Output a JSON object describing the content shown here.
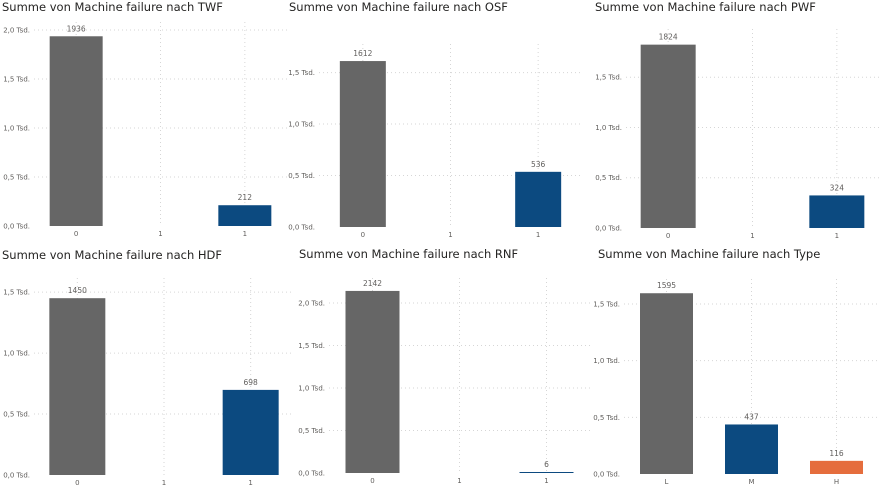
{
  "colors": {
    "grey": "#666666",
    "blue": "#0c4a80",
    "orange": "#e56d3d",
    "grid": "#d6d6d6"
  },
  "chart_data": [
    {
      "type": "bar",
      "title": "Summe von Machine failure nach TWF",
      "categories": [
        "0",
        "1",
        "1"
      ],
      "values": [
        1936,
        0,
        212
      ],
      "bar_colors": [
        "grey",
        "none",
        "blue"
      ],
      "data_labels": [
        "1936",
        "",
        "212"
      ],
      "ylim": [
        0,
        2000
      ],
      "yticks": [
        0,
        500,
        1000,
        1500,
        2000
      ],
      "ytick_labels": [
        "0,0 Tsd.",
        "0,5 Tsd.",
        "1,0 Tsd.",
        "1,5 Tsd.",
        "2,0 Tsd."
      ],
      "grid": true
    },
    {
      "type": "bar",
      "title": "Summe von Machine failure nach OSF",
      "categories": [
        "0",
        "1",
        "1"
      ],
      "values": [
        1612,
        0,
        536
      ],
      "bar_colors": [
        "grey",
        "none",
        "blue"
      ],
      "data_labels": [
        "1612",
        "",
        "536"
      ],
      "ylim": [
        0,
        1700
      ],
      "yticks": [
        0,
        500,
        1000,
        1500
      ],
      "ytick_labels": [
        "0,0 Tsd.",
        "0,5 Tsd.",
        "1,0 Tsd.",
        "1,5 Tsd."
      ],
      "grid": true
    },
    {
      "type": "bar",
      "title": "Summe von Machine failure nach PWF",
      "categories": [
        "0",
        "1",
        "1"
      ],
      "values": [
        1824,
        0,
        324
      ],
      "bar_colors": [
        "grey",
        "none",
        "blue"
      ],
      "data_labels": [
        "1824",
        "",
        "324"
      ],
      "ylim": [
        0,
        1900
      ],
      "yticks": [
        0,
        500,
        1000,
        1500
      ],
      "ytick_labels": [
        "0,0 Tsd.",
        "0,5 Tsd.",
        "1,0 Tsd.",
        "1,5 Tsd."
      ],
      "grid": true
    },
    {
      "type": "bar",
      "title": "Summe von Machine failure nach HDF",
      "categories": [
        "0",
        "1",
        "1"
      ],
      "values": [
        1450,
        0,
        698
      ],
      "bar_colors": [
        "grey",
        "none",
        "blue"
      ],
      "data_labels": [
        "1450",
        "",
        "698"
      ],
      "ylim": [
        0,
        1550
      ],
      "yticks": [
        0,
        500,
        1000,
        1500
      ],
      "ytick_labels": [
        "0,0 Tsd.",
        "0,5 Tsd.",
        "1,0 Tsd.",
        "1,5 Tsd."
      ],
      "grid": true
    },
    {
      "type": "bar",
      "title": "Summe von Machine failure nach RNF",
      "categories": [
        "0",
        "1",
        "1"
      ],
      "values": [
        2142,
        0,
        6
      ],
      "bar_colors": [
        "grey",
        "none",
        "blue"
      ],
      "data_labels": [
        "2142",
        "",
        "6"
      ],
      "ylim": [
        0,
        2200
      ],
      "yticks": [
        0,
        500,
        1000,
        1500,
        2000
      ],
      "ytick_labels": [
        "0,0 Tsd.",
        "0,5 Tsd.",
        "1,0 Tsd.",
        "1,5 Tsd.",
        "2,0 Tsd."
      ],
      "grid": true
    },
    {
      "type": "bar",
      "title": "Summe von Machine failure nach Type",
      "categories": [
        "L",
        "M",
        "H"
      ],
      "values": [
        1595,
        437,
        116
      ],
      "bar_colors": [
        "grey",
        "blue",
        "orange"
      ],
      "data_labels": [
        "1595",
        "437",
        "116"
      ],
      "ylim": [
        0,
        1650
      ],
      "yticks": [
        0,
        500,
        1000,
        1500
      ],
      "ytick_labels": [
        "0,0 Tsd.",
        "0,5 Tsd.",
        "1,0 Tsd.",
        "1,5 Tsd."
      ],
      "grid": true
    }
  ]
}
